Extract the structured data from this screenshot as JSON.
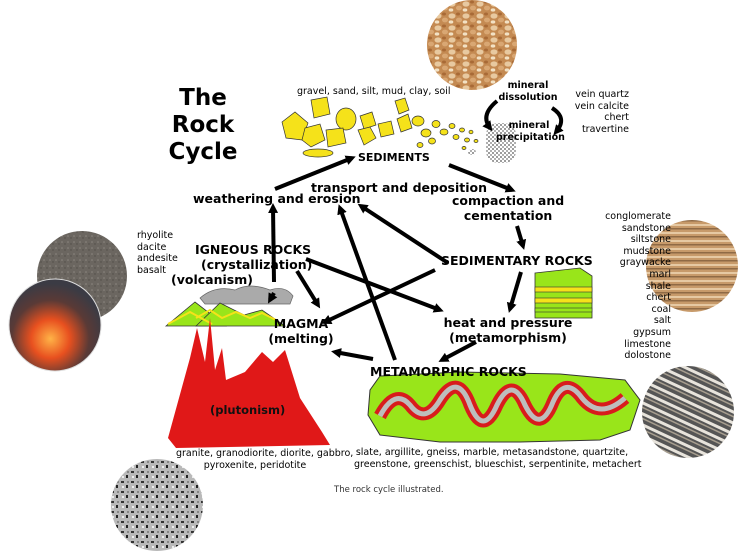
{
  "title_lines": [
    "The",
    "Rock",
    "Cycle"
  ],
  "labels": {
    "sediments": "SEDIMENTS",
    "sediment_types": "gravel, sand, silt, mud, clay, soil",
    "mineral_dissolution": [
      "mineral",
      "dissolution"
    ],
    "mineral_precipitation": [
      "mineral",
      "precipitation"
    ],
    "transport": "transport and deposition",
    "weathering": "weathering and erosion",
    "compaction": [
      "compaction and",
      "cementation"
    ],
    "igneous": [
      "IGNEOUS ROCKS",
      "(crystallization)",
      "(volcanism)"
    ],
    "sedimentary": "SEDIMENTARY ROCKS",
    "magma": [
      "MAGMA",
      "(melting)"
    ],
    "heat": [
      "heat and pressure",
      "(metamorphism)"
    ],
    "metamorphic": "METAMORPHIC ROCKS",
    "plutonism": "(plutonism)"
  },
  "lists": {
    "precipitates": [
      "vein quartz",
      "vein calcite",
      "chert",
      "travertine"
    ],
    "volcanic": [
      "rhyolite",
      "dacite",
      "andesite",
      "basalt"
    ],
    "sedimentary": [
      "conglomerate",
      "sandstone",
      "siltstone",
      "mudstone",
      "graywacke",
      "marl",
      "shale",
      "chert",
      "coal",
      "salt",
      "gypsum",
      "limestone",
      "dolostone"
    ],
    "plutonic": [
      "granite, granodiorite, diorite, gabbro,",
      "pyroxenite, peridotite"
    ],
    "metamorphic": [
      "slate, argillite, gneiss, marble, metasandstone, quartzite,",
      "greenstone, greenschist, blueschist, serpentinite, metachert"
    ]
  },
  "caption": "The rock cycle illustrated.",
  "icons": [
    "gravel-photo-icon",
    "basalt-photo-icon",
    "lava-photo-icon",
    "sandstone-photo-icon",
    "gneiss-photo-icon",
    "granite-photo-icon"
  ],
  "colors": {
    "sediment_yellow": "#f5e21a",
    "green": "#99e51a",
    "red": "#e01818",
    "gray": "#aaaaaa"
  }
}
